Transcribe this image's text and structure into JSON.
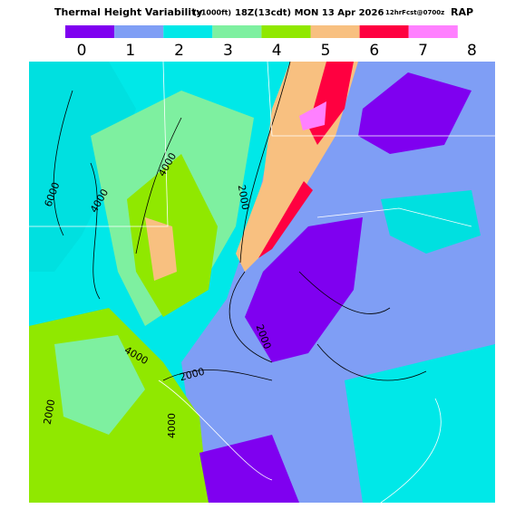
{
  "header": {
    "title": "Thermal Height Variability",
    "units": "(x1000ft)",
    "valid": "18Z(13cdt) MON 13 Apr 2026",
    "forecast": "12hrFcst@0700z",
    "model": "RAP"
  },
  "colorbar": {
    "ticks": [
      0,
      1,
      2,
      3,
      4,
      5,
      6,
      7,
      8
    ],
    "colors": [
      "#7f00f0",
      "#7f9ef5",
      "#00e8e8",
      "#7ef0a0",
      "#90e800",
      "#f8c080",
      "#ff0040",
      "#ff80ff"
    ]
  },
  "contours": {
    "labels": [
      "6000",
      "4000",
      "4000",
      "2000",
      "4000",
      "2000",
      "2000",
      "2000",
      "4000"
    ]
  }
}
